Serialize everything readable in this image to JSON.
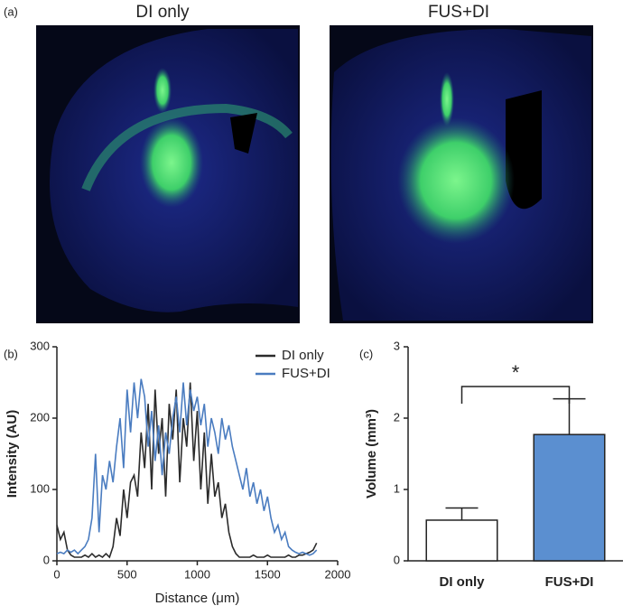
{
  "panel_a": {
    "label": "(a)",
    "images": [
      {
        "title": "DI only"
      },
      {
        "title": "FUS+DI"
      }
    ]
  },
  "chart_data": [
    {
      "type": "line",
      "panel_label": "(b)",
      "x_label": "Distance (μm)",
      "y_label": "Intensity (AU)",
      "x": [
        0,
        25,
        50,
        75,
        100,
        125,
        150,
        175,
        200,
        225,
        250,
        275,
        300,
        325,
        350,
        375,
        400,
        425,
        450,
        475,
        500,
        525,
        550,
        575,
        600,
        625,
        650,
        675,
        700,
        725,
        750,
        775,
        800,
        825,
        850,
        875,
        900,
        925,
        950,
        975,
        1000,
        1025,
        1050,
        1075,
        1100,
        1125,
        1150,
        1175,
        1200,
        1225,
        1250,
        1275,
        1300,
        1325,
        1350,
        1375,
        1400,
        1425,
        1450,
        1475,
        1500,
        1525,
        1550,
        1575,
        1600,
        1625,
        1650,
        1675,
        1700,
        1725,
        1750,
        1775,
        1800,
        1825,
        1850
      ],
      "series": [
        {
          "name": "DI only",
          "color": "#2b2b2b",
          "values": [
            50,
            30,
            40,
            15,
            8,
            5,
            5,
            5,
            8,
            5,
            10,
            5,
            8,
            5,
            10,
            5,
            20,
            60,
            35,
            100,
            60,
            110,
            120,
            90,
            180,
            130,
            220,
            100,
            240,
            150,
            200,
            90,
            220,
            170,
            240,
            110,
            200,
            160,
            250,
            140,
            210,
            100,
            180,
            80,
            150,
            90,
            110,
            60,
            80,
            40,
            20,
            10,
            5,
            5,
            5,
            5,
            8,
            5,
            5,
            5,
            8,
            5,
            5,
            5,
            5,
            5,
            8,
            5,
            5,
            8,
            8,
            10,
            12,
            15,
            25
          ]
        },
        {
          "name": "FUS+DI",
          "color": "#4a7cc0",
          "values": [
            10,
            12,
            10,
            15,
            12,
            15,
            10,
            15,
            20,
            30,
            60,
            150,
            40,
            120,
            100,
            140,
            110,
            160,
            200,
            130,
            240,
            180,
            250,
            200,
            255,
            230,
            160,
            210,
            140,
            190,
            120,
            180,
            150,
            200,
            230,
            180,
            250,
            190,
            240,
            210,
            230,
            190,
            220,
            160,
            200,
            180,
            150,
            200,
            170,
            190,
            160,
            140,
            120,
            100,
            130,
            90,
            110,
            80,
            100,
            70,
            90,
            60,
            40,
            50,
            30,
            40,
            20,
            15,
            12,
            10,
            12,
            10,
            8,
            10,
            15
          ]
        }
      ],
      "xlim": [
        0,
        2000
      ],
      "xticks": [
        0,
        500,
        1000,
        1500,
        2000
      ],
      "ylim": [
        0,
        300
      ],
      "yticks": [
        0,
        100,
        200,
        300
      ],
      "legend": "upper right"
    },
    {
      "type": "bar",
      "panel_label": "(c)",
      "y_label": "Volume (mm³)",
      "categories": [
        "DI only",
        "FUS+DI"
      ],
      "values": [
        0.57,
        1.77
      ],
      "errors": [
        0.17,
        0.5
      ],
      "colors": [
        "#ffffff",
        "#5b8fd0"
      ],
      "significance": "*",
      "ylim": [
        0,
        3
      ],
      "yticks": [
        0,
        1,
        2,
        3
      ]
    }
  ]
}
